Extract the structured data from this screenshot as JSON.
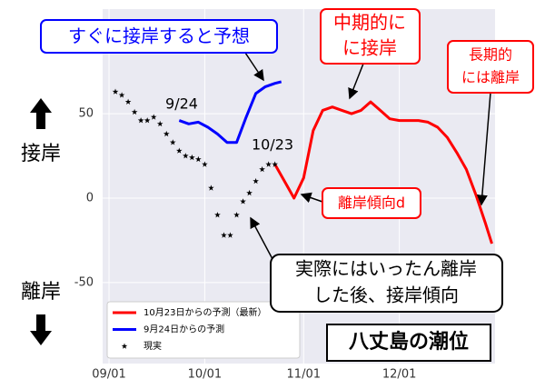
{
  "chart_data": {
    "type": "line",
    "xlim": [
      "08/30",
      "12/31"
    ],
    "xticks": [
      "09/01",
      "10/01",
      "11/01",
      "12/01"
    ],
    "ylim": [
      -98,
      112
    ],
    "yticks": [
      -50,
      0,
      50
    ],
    "grid": true,
    "legend": "lower left",
    "series": [
      {
        "name": "10月23日からの予測（最新）",
        "color": "#ff0000",
        "marker": "line",
        "x": [
          "10/23",
          "10/26",
          "10/29",
          "11/01",
          "11/04",
          "11/07",
          "11/10",
          "11/13",
          "11/16",
          "11/19",
          "11/22",
          "11/25",
          "11/28",
          "12/01",
          "12/04",
          "12/07",
          "12/10",
          "12/13",
          "12/16",
          "12/19",
          "12/22",
          "12/25",
          "12/28",
          "12/30"
        ],
        "values": [
          20,
          10,
          0,
          12,
          40,
          52,
          54,
          52,
          50,
          52,
          57,
          52,
          47,
          46,
          46,
          46,
          45,
          42,
          36,
          27,
          17,
          2,
          -15,
          -27
        ]
      },
      {
        "name": "9月24日からの予測",
        "color": "#0000ff",
        "marker": "line",
        "x": [
          "09/23",
          "09/26",
          "09/29",
          "10/02",
          "10/05",
          "10/08",
          "10/11",
          "10/14",
          "10/17",
          "10/20",
          "10/23",
          "10/25"
        ],
        "values": [
          46,
          44,
          45,
          42,
          38,
          33,
          33,
          48,
          62,
          66,
          68,
          69
        ]
      },
      {
        "name": "現実",
        "color": "#000000",
        "marker": "star",
        "x": [
          "09/03",
          "09/05",
          "09/07",
          "09/09",
          "09/11",
          "09/13",
          "09/15",
          "09/17",
          "09/19",
          "09/21",
          "09/23",
          "09/25",
          "09/27",
          "09/29",
          "10/01",
          "10/03",
          "10/05",
          "10/07",
          "10/09",
          "10/11",
          "10/13",
          "10/15",
          "10/17",
          "10/19",
          "10/21",
          "10/23"
        ],
        "values": [
          63,
          61,
          57,
          51,
          46,
          46,
          48,
          44,
          38,
          33,
          28,
          25,
          24,
          23,
          20,
          6,
          -10,
          -22,
          -22,
          -10,
          -2,
          3,
          10,
          17,
          20,
          20
        ]
      }
    ],
    "annotations": [
      [
        "すぐに接岸すると予想"
      ],
      [
        "中期的に",
        "に接岸"
      ],
      [
        "長期的",
        "には離岸"
      ],
      [
        "離岸傾向d"
      ],
      [
        "実際にはいったん離岸",
        "した後、接岸傾向"
      ],
      [
        "八丈島の潮位"
      ],
      [
        "9/24"
      ],
      [
        "10/23"
      ],
      [
        "接岸"
      ],
      [
        "離岸"
      ]
    ]
  }
}
